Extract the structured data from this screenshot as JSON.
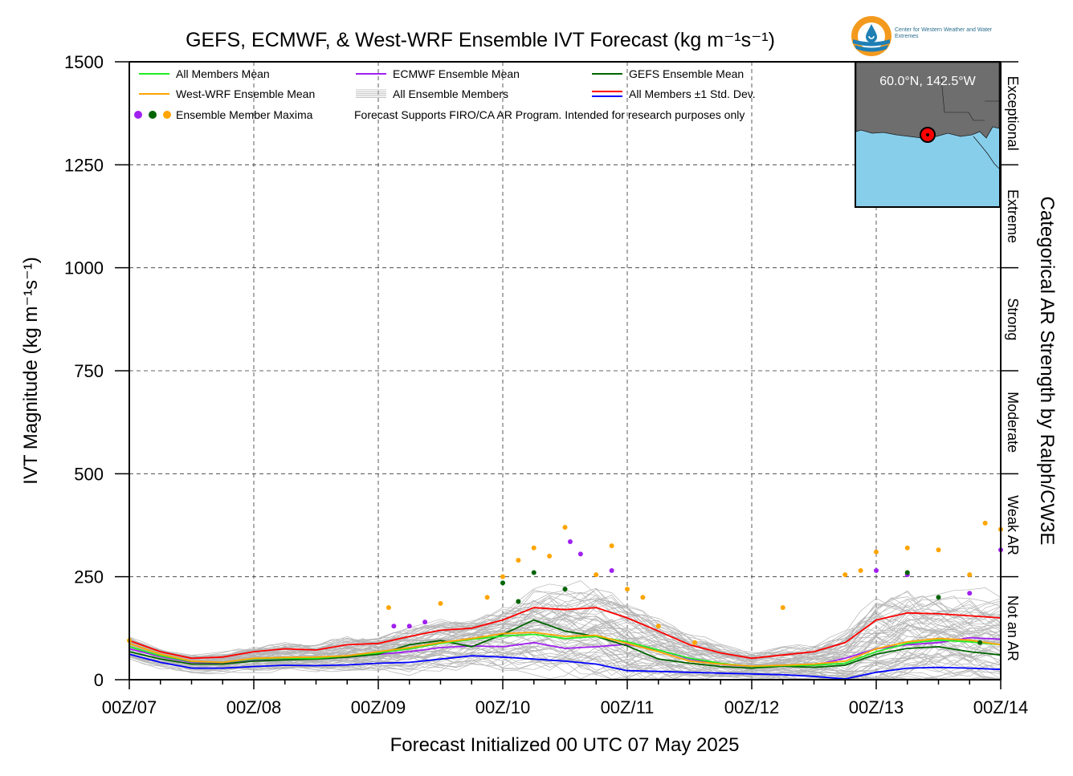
{
  "title": "GEFS, ECMWF, & West-WRF Ensemble IVT Forecast (kg m⁻¹s⁻¹)",
  "logo": {
    "text": "Center for Western Weather and Water Extremes",
    "colors": {
      "ring": "#f39a1e",
      "water": "#1f7fb5"
    }
  },
  "inset_map": {
    "label": "60.0°N, 142.5°W",
    "colors": {
      "land": "#6e6e6e",
      "ocean": "#87ceeb",
      "marker": "#ff0000"
    }
  },
  "legend": {
    "items": [
      {
        "label": "All Members Mean",
        "color": "#22ee22",
        "kind": "line"
      },
      {
        "label": "ECMWF Ensemble Mean",
        "color": "#a020f0",
        "kind": "line"
      },
      {
        "label": "GEFS Ensemble Mean",
        "color": "#006400",
        "kind": "line"
      },
      {
        "label": "West-WRF Ensemble Mean",
        "color": "#ffa500",
        "kind": "line"
      },
      {
        "label": "All Ensemble Members",
        "color": "#b0b0b0",
        "kind": "multi"
      },
      {
        "label": "All Members ±1 Std. Dev.",
        "color": "#ff0000",
        "color2": "#0000ff",
        "kind": "double"
      },
      {
        "label": "Ensemble Member Maxima",
        "kind": "dots",
        "colors": [
          "#a020f0",
          "#006400",
          "#ffa500"
        ]
      }
    ],
    "note": "Forecast Supports FIRO/CA AR Program. Intended for research purposes only"
  },
  "chart_data": {
    "type": "line",
    "title": "GEFS, ECMWF, & West-WRF Ensemble IVT Forecast (kg m⁻¹s⁻¹)",
    "xlabel": "Forecast Initialized 00 UTC 07 May 2025",
    "ylabel": "IVT Magnitude (kg m⁻¹s⁻¹)",
    "right_label": "Categorical AR Strength by Ralph/CW3E",
    "xlim": [
      0,
      168
    ],
    "ylim": [
      0,
      1500
    ],
    "x_unit": "forecast hours",
    "x_ticks": [
      {
        "value": 0,
        "label": "00Z/07"
      },
      {
        "value": 24,
        "label": "00Z/08"
      },
      {
        "value": 48,
        "label": "00Z/09"
      },
      {
        "value": 72,
        "label": "00Z/10"
      },
      {
        "value": 96,
        "label": "00Z/11"
      },
      {
        "value": 120,
        "label": "00Z/12"
      },
      {
        "value": 144,
        "label": "00Z/13"
      },
      {
        "value": 168,
        "label": "00Z/14"
      }
    ],
    "y_ticks": [
      "0",
      "250",
      "500",
      "750",
      "1000",
      "1250",
      "1500"
    ],
    "grid": true,
    "categories_right": [
      {
        "label": "Not an AR",
        "from": 0,
        "to": 250
      },
      {
        "label": "Weak AR",
        "from": 250,
        "to": 500
      },
      {
        "label": "Moderate",
        "from": 500,
        "to": 750
      },
      {
        "label": "Strong",
        "from": 750,
        "to": 1000
      },
      {
        "label": "Extreme",
        "from": 1000,
        "to": 1250
      },
      {
        "label": "Exceptional",
        "from": 1250,
        "to": 1500
      }
    ],
    "series": [
      {
        "name": "All Members Mean",
        "color": "#22ee22",
        "x": [
          0,
          6,
          12,
          18,
          24,
          30,
          36,
          42,
          48,
          54,
          60,
          66,
          72,
          78,
          84,
          90,
          96,
          102,
          108,
          114,
          120,
          126,
          132,
          138,
          144,
          150,
          156,
          162,
          168
        ],
        "y": [
          80,
          58,
          44,
          42,
          50,
          52,
          52,
          58,
          65,
          75,
          88,
          98,
          106,
          110,
          100,
          105,
          92,
          72,
          52,
          40,
          32,
          34,
          35,
          40,
          68,
          88,
          96,
          92,
          85
        ]
      },
      {
        "name": "ECMWF Ensemble Mean",
        "color": "#a020f0",
        "x": [
          0,
          6,
          12,
          18,
          24,
          30,
          36,
          42,
          48,
          54,
          60,
          66,
          72,
          78,
          84,
          90,
          96,
          102,
          108,
          114,
          120,
          126,
          132,
          138,
          144,
          150,
          156,
          162,
          168
        ],
        "y": [
          75,
          56,
          42,
          40,
          48,
          50,
          52,
          55,
          62,
          68,
          78,
          82,
          80,
          90,
          76,
          80,
          86,
          72,
          50,
          38,
          32,
          33,
          35,
          52,
          75,
          85,
          90,
          102,
          98
        ]
      },
      {
        "name": "GEFS Ensemble Mean",
        "color": "#006400",
        "x": [
          0,
          6,
          12,
          18,
          24,
          30,
          36,
          42,
          48,
          54,
          60,
          66,
          72,
          78,
          84,
          90,
          96,
          102,
          108,
          114,
          120,
          126,
          132,
          138,
          144,
          150,
          156,
          162,
          168
        ],
        "y": [
          68,
          50,
          38,
          38,
          45,
          48,
          50,
          55,
          62,
          85,
          95,
          80,
          110,
          145,
          118,
          105,
          82,
          50,
          40,
          32,
          28,
          33,
          30,
          35,
          62,
          76,
          80,
          68,
          60
        ]
      },
      {
        "name": "West-WRF Ensemble Mean",
        "color": "#ffa500",
        "x": [
          0,
          6,
          12,
          18,
          24,
          30,
          36,
          42,
          48,
          54,
          60,
          66,
          72,
          78,
          84,
          90,
          96,
          102,
          108,
          114,
          120,
          126,
          132,
          138,
          144,
          150,
          156,
          162,
          168
        ],
        "y": [
          88,
          62,
          45,
          42,
          52,
          54,
          55,
          58,
          68,
          78,
          90,
          100,
          112,
          115,
          105,
          108,
          88,
          68,
          45,
          38,
          33,
          35,
          38,
          45,
          75,
          92,
          100,
          96,
          85
        ]
      },
      {
        "name": "All Members +1 Std. Dev.",
        "color": "#ff0000",
        "x": [
          0,
          6,
          12,
          18,
          24,
          30,
          36,
          42,
          48,
          54,
          60,
          66,
          72,
          78,
          84,
          90,
          96,
          102,
          108,
          114,
          120,
          126,
          132,
          138,
          144,
          150,
          156,
          162,
          168
        ],
        "y": [
          95,
          68,
          52,
          55,
          68,
          75,
          72,
          85,
          88,
          105,
          120,
          125,
          145,
          175,
          170,
          175,
          150,
          118,
          85,
          65,
          52,
          60,
          68,
          90,
          145,
          162,
          160,
          155,
          150
        ]
      },
      {
        "name": "All Members -1 Std. Dev.",
        "color": "#0000ff",
        "x": [
          0,
          6,
          12,
          18,
          24,
          30,
          36,
          42,
          48,
          54,
          60,
          66,
          72,
          78,
          84,
          90,
          96,
          102,
          108,
          114,
          120,
          126,
          132,
          138,
          144,
          150,
          156,
          162,
          168
        ],
        "y": [
          62,
          42,
          28,
          28,
          32,
          35,
          34,
          36,
          40,
          42,
          50,
          58,
          55,
          50,
          45,
          38,
          22,
          20,
          18,
          16,
          14,
          12,
          8,
          2,
          18,
          28,
          30,
          28,
          25
        ]
      }
    ],
    "maxima": [
      {
        "x": 51,
        "y": 130,
        "color": "#a020f0"
      },
      {
        "x": 54,
        "y": 130,
        "color": "#a020f0"
      },
      {
        "x": 57,
        "y": 140,
        "color": "#a020f0"
      },
      {
        "x": 85,
        "y": 335,
        "color": "#a020f0"
      },
      {
        "x": 87,
        "y": 305,
        "color": "#a020f0"
      },
      {
        "x": 93,
        "y": 265,
        "color": "#a020f0"
      },
      {
        "x": 144,
        "y": 265,
        "color": "#a020f0"
      },
      {
        "x": 150,
        "y": 255,
        "color": "#a020f0"
      },
      {
        "x": 168,
        "y": 315,
        "color": "#a020f0"
      },
      {
        "x": 162,
        "y": 210,
        "color": "#a020f0"
      },
      {
        "x": 72,
        "y": 235,
        "color": "#006400"
      },
      {
        "x": 75,
        "y": 190,
        "color": "#006400"
      },
      {
        "x": 78,
        "y": 260,
        "color": "#006400"
      },
      {
        "x": 84,
        "y": 220,
        "color": "#006400"
      },
      {
        "x": 150,
        "y": 260,
        "color": "#006400"
      },
      {
        "x": 156,
        "y": 200,
        "color": "#006400"
      },
      {
        "x": 164,
        "y": 90,
        "color": "#006400"
      },
      {
        "x": 0,
        "y": 95,
        "color": "#ffa500"
      },
      {
        "x": 50,
        "y": 175,
        "color": "#ffa500"
      },
      {
        "x": 60,
        "y": 185,
        "color": "#ffa500"
      },
      {
        "x": 69,
        "y": 200,
        "color": "#ffa500"
      },
      {
        "x": 72,
        "y": 250,
        "color": "#ffa500"
      },
      {
        "x": 75,
        "y": 290,
        "color": "#ffa500"
      },
      {
        "x": 78,
        "y": 320,
        "color": "#ffa500"
      },
      {
        "x": 81,
        "y": 300,
        "color": "#ffa500"
      },
      {
        "x": 84,
        "y": 370,
        "color": "#ffa500"
      },
      {
        "x": 90,
        "y": 255,
        "color": "#ffa500"
      },
      {
        "x": 93,
        "y": 325,
        "color": "#ffa500"
      },
      {
        "x": 96,
        "y": 220,
        "color": "#ffa500"
      },
      {
        "x": 99,
        "y": 200,
        "color": "#ffa500"
      },
      {
        "x": 102,
        "y": 130,
        "color": "#ffa500"
      },
      {
        "x": 109,
        "y": 90,
        "color": "#ffa500"
      },
      {
        "x": 126,
        "y": 175,
        "color": "#ffa500"
      },
      {
        "x": 138,
        "y": 255,
        "color": "#ffa500"
      },
      {
        "x": 141,
        "y": 265,
        "color": "#ffa500"
      },
      {
        "x": 144,
        "y": 310,
        "color": "#ffa500"
      },
      {
        "x": 150,
        "y": 320,
        "color": "#ffa500"
      },
      {
        "x": 156,
        "y": 315,
        "color": "#ffa500"
      },
      {
        "x": 162,
        "y": 255,
        "color": "#ffa500"
      },
      {
        "x": 165,
        "y": 380,
        "color": "#ffa500"
      },
      {
        "x": 168,
        "y": 365,
        "color": "#ffa500"
      }
    ]
  }
}
